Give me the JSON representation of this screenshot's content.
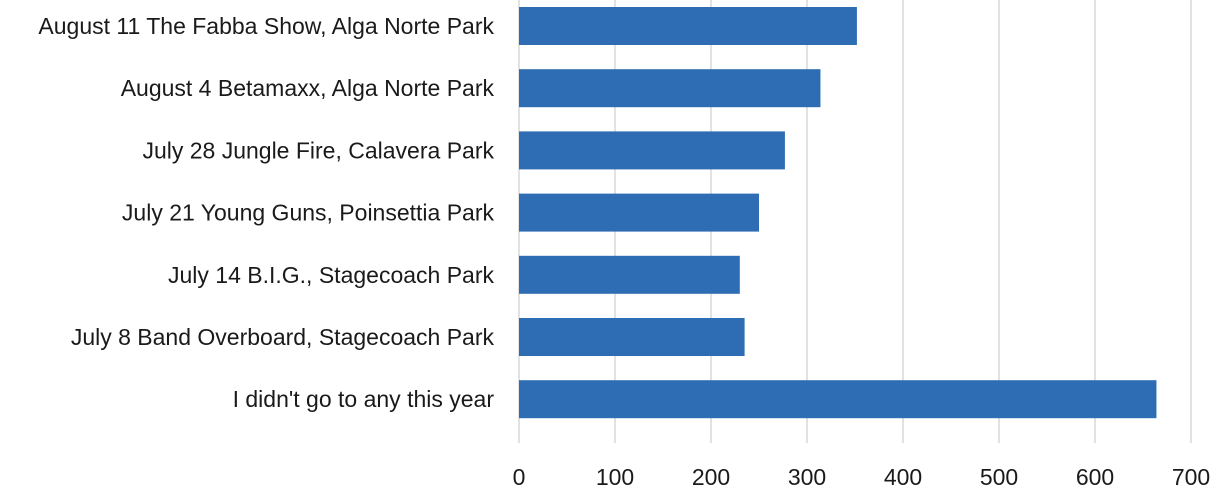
{
  "chart_data": {
    "type": "bar",
    "orientation": "horizontal",
    "title": "",
    "xlabel": "",
    "ylabel": "",
    "categories": [
      "August 11 The Fabba Show, Alga Norte Park",
      "August 4 Betamaxx, Alga Norte Park",
      "July 28 Jungle Fire, Calavera Park",
      "July 21 Young Guns, Poinsettia Park",
      "July 14 B.I.G., Stagecoach Park",
      "July 8 Band Overboard, Stagecoach Park",
      "I didn't go to any this year"
    ],
    "values": [
      352,
      314,
      277,
      250,
      230,
      235,
      664
    ],
    "xlim": [
      0,
      700
    ],
    "xticks": [
      "0",
      "100",
      "200",
      "300",
      "400",
      "500",
      "600",
      "700"
    ],
    "grid": true,
    "legend": "none",
    "colors": {
      "bar": "#2e6db4",
      "grid": "#d9d9d9",
      "text": "#1a1a1a"
    }
  }
}
